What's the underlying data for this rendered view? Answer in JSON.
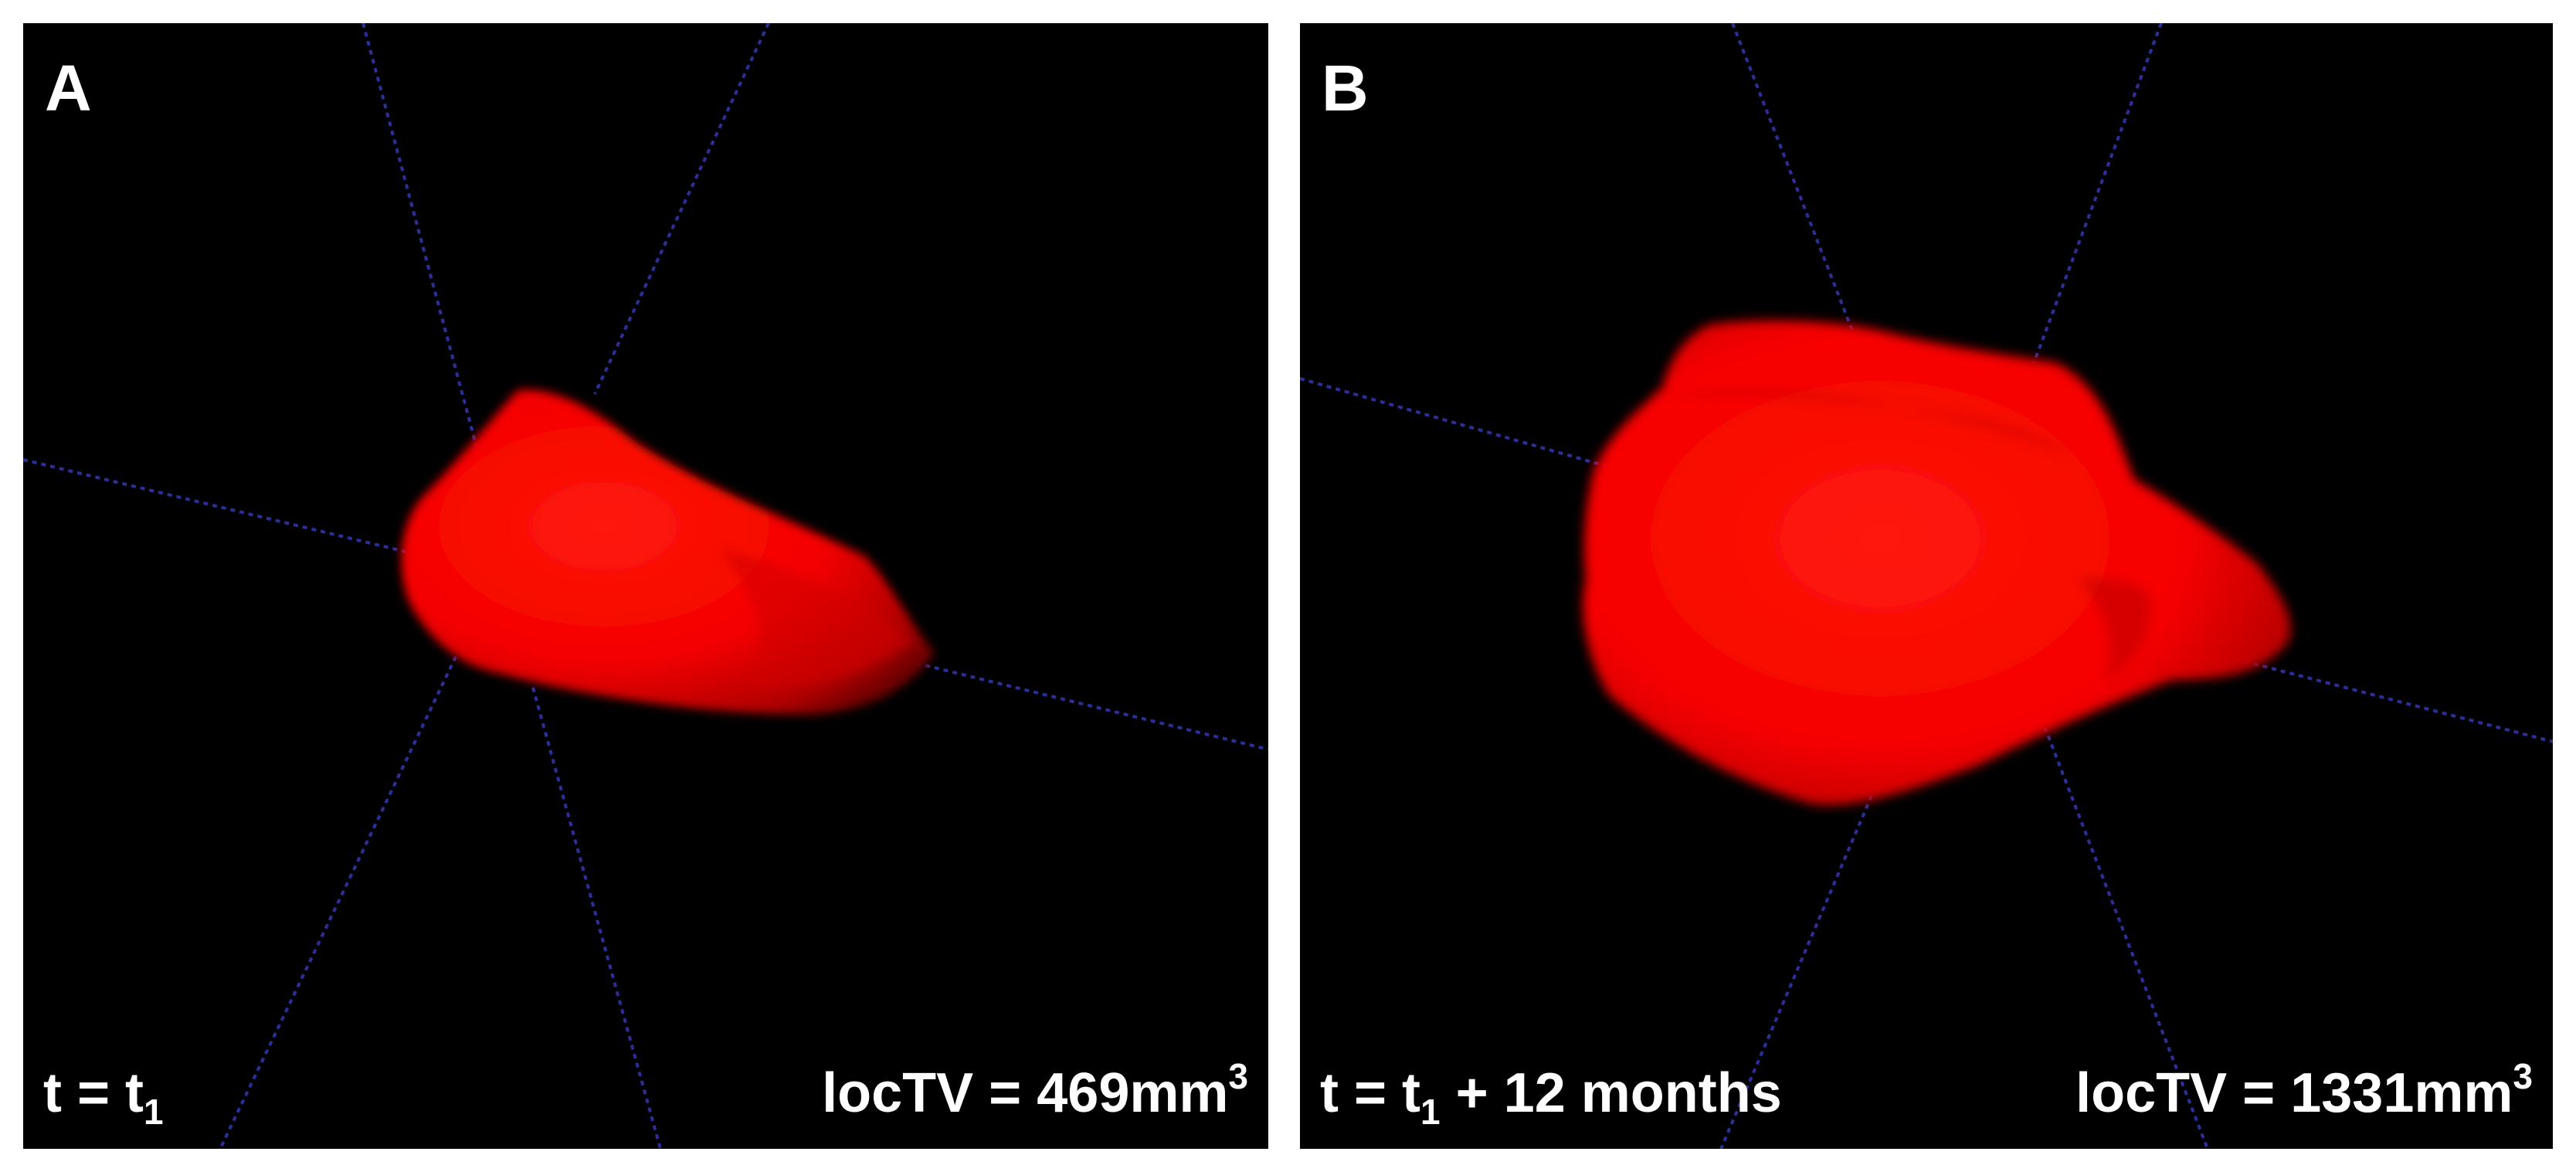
{
  "figure": {
    "panels": [
      {
        "letter": "A",
        "time_label": {
          "prefix": "t = t",
          "subscript": "1",
          "suffix": ""
        },
        "volume_label": {
          "text": "locTV = 469mm",
          "superscript": "3"
        }
      },
      {
        "letter": "B",
        "time_label": {
          "prefix": "t = t",
          "subscript": "1",
          "suffix": " + 12 months"
        },
        "volume_label": {
          "text": "locTV = 1331mm",
          "superscript": "3"
        }
      }
    ]
  },
  "colors": {
    "background": "#000000",
    "tumor": "#ff0000",
    "axis_lines": "#2a2f9a",
    "text": "#ffffff"
  }
}
